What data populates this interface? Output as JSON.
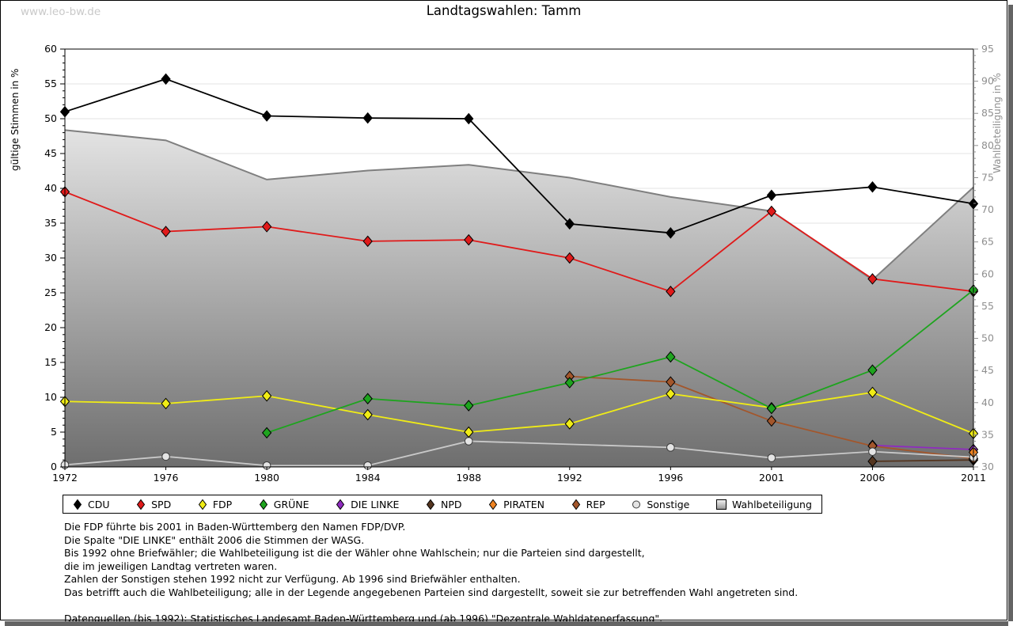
{
  "watermark": "www.leo-bw.de",
  "title": "Landtagswahlen: Tamm",
  "chart_data": {
    "type": "line",
    "title": "Landtagswahlen: Tamm",
    "x_categories": [
      "1972",
      "1976",
      "1980",
      "1984",
      "1988",
      "1992",
      "1996",
      "2001",
      "2006",
      "2011"
    ],
    "y_left": {
      "label": "gültige Stimmen in %",
      "min": 0,
      "max": 60,
      "major_tick": 5,
      "minor_tick": 1,
      "tick_labels": [
        "0",
        "5",
        "10",
        "15",
        "20",
        "25",
        "30",
        "35",
        "40",
        "45",
        "50",
        "55",
        "60"
      ]
    },
    "y_right": {
      "label": "Wahlbeteiligung in %",
      "min": 30,
      "max": 95,
      "major_tick": 5,
      "minor_tick": 1,
      "tick_labels": [
        "30",
        "35",
        "40",
        "45",
        "50",
        "55",
        "60",
        "65",
        "70",
        "75",
        "80",
        "85",
        "90",
        "95"
      ]
    },
    "grid": {
      "horizontal_every": 5,
      "color": "#e3e3e3"
    },
    "legend_position": "bottom",
    "series": [
      {
        "name": "CDU",
        "color": "#000000",
        "marker": "diamond",
        "axis": "left",
        "kind": "line",
        "values": [
          51.0,
          55.7,
          50.4,
          50.1,
          50.0,
          34.9,
          33.6,
          39.0,
          40.2,
          37.8
        ]
      },
      {
        "name": "SPD",
        "color": "#e01a1a",
        "marker": "diamond",
        "axis": "left",
        "kind": "line",
        "values": [
          39.5,
          33.8,
          34.5,
          32.4,
          32.6,
          30.0,
          25.2,
          36.7,
          27.0,
          25.2
        ]
      },
      {
        "name": "FDP",
        "color": "#f0ec16",
        "marker": "diamond",
        "axis": "left",
        "kind": "line",
        "values": [
          9.4,
          9.1,
          10.2,
          7.5,
          5.0,
          6.2,
          10.5,
          8.5,
          10.7,
          4.8
        ]
      },
      {
        "name": "GRÜNE",
        "color": "#1ea41e",
        "marker": "diamond",
        "axis": "left",
        "kind": "line",
        "values": [
          null,
          null,
          4.9,
          9.8,
          8.8,
          12.1,
          15.8,
          8.4,
          13.9,
          25.4
        ]
      },
      {
        "name": "DIE LINKE",
        "color": "#8f2bbf",
        "marker": "diamond",
        "axis": "left",
        "kind": "line",
        "values": [
          null,
          null,
          null,
          null,
          null,
          null,
          null,
          null,
          3.1,
          2.5
        ]
      },
      {
        "name": "NPD",
        "color": "#54351f",
        "marker": "diamond",
        "axis": "left",
        "kind": "line",
        "values": [
          null,
          null,
          null,
          null,
          null,
          null,
          null,
          null,
          0.8,
          1.0
        ]
      },
      {
        "name": "PIRATEN",
        "color": "#ee8322",
        "marker": "diamond",
        "axis": "left",
        "kind": "line",
        "values": [
          null,
          null,
          null,
          null,
          null,
          null,
          null,
          null,
          null,
          2.1
        ]
      },
      {
        "name": "REP",
        "color": "#a3562b",
        "marker": "diamond",
        "axis": "left",
        "kind": "line",
        "values": [
          null,
          null,
          null,
          null,
          null,
          13.0,
          12.2,
          6.6,
          3.0,
          1.2
        ]
      },
      {
        "name": "Sonstige",
        "color": "#c9c9c9",
        "marker": "circle",
        "axis": "left",
        "kind": "line",
        "values": [
          0.3,
          1.5,
          0.2,
          0.2,
          3.7,
          null,
          2.8,
          1.3,
          2.2,
          1.4
        ],
        "connect_gaps": true
      },
      {
        "name": "Wahlbeteiligung",
        "color": "#7f7f7f",
        "marker": "square",
        "axis": "right",
        "kind": "area",
        "values": [
          82.4,
          80.8,
          74.7,
          76.1,
          77.0,
          75.0,
          72.0,
          69.8,
          59.1,
          73.5
        ]
      }
    ]
  },
  "footnotes": [
    "Die FDP führte bis 2001 in Baden-Württemberg den Namen FDP/DVP.",
    "Die Spalte \"DIE LINKE\" enthält 2006 die Stimmen der WASG.",
    "Bis 1992 ohne Briefwähler; die Wahlbeteiligung ist die der Wähler ohne Wahlschein; nur die Parteien sind dargestellt,",
    "die im jeweiligen Landtag vertreten waren.",
    "Zahlen der Sonstigen stehen 1992 nicht zur Verfügung. Ab 1996 sind Briefwähler enthalten.",
    "Das betrifft auch die Wahlbeteiligung; alle in der Legende angegebenen Parteien sind dargestellt, soweit sie zur betreffenden Wahl angetreten sind.",
    "",
    "Datenquellen (bis 1992): Statistisches Landesamt Baden-Württemberg und (ab 1996) \"Dezentrale Wahldatenerfassung\"."
  ]
}
